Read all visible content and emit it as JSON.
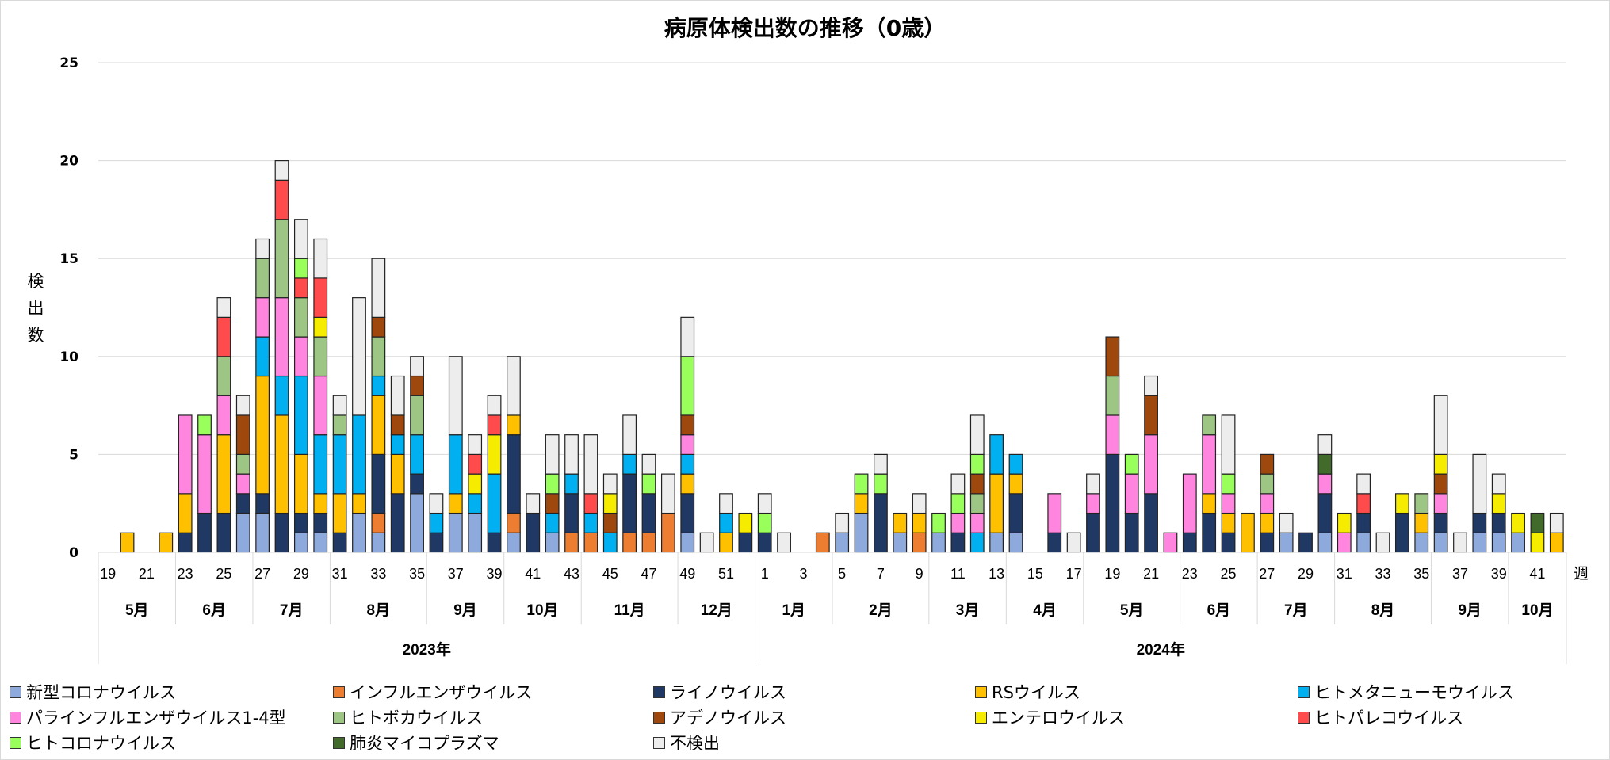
{
  "chart_data": {
    "type": "bar",
    "stacked": true,
    "title": "病原体検出数の推移（0歳）",
    "ylabel": "検出数",
    "xlabel": "週",
    "ylim": [
      0,
      25
    ],
    "yticks": [
      0,
      5,
      10,
      15,
      20,
      25
    ],
    "grid": true,
    "legend_position": "bottom",
    "years": [
      {
        "label": "2023年",
        "weeks": 34
      },
      {
        "label": "2024年",
        "weeks": 42
      }
    ],
    "months": [
      {
        "label": "5月",
        "weeks": 4
      },
      {
        "label": "6月",
        "weeks": 4
      },
      {
        "label": "7月",
        "weeks": 4
      },
      {
        "label": "8月",
        "weeks": 5
      },
      {
        "label": "9月",
        "weeks": 4
      },
      {
        "label": "10月",
        "weeks": 4
      },
      {
        "label": "11月",
        "weeks": 5
      },
      {
        "label": "12月",
        "weeks": 4
      },
      {
        "label": "1月",
        "weeks": 4
      },
      {
        "label": "2月",
        "weeks": 5
      },
      {
        "label": "3月",
        "weeks": 4
      },
      {
        "label": "4月",
        "weeks": 4
      },
      {
        "label": "5月",
        "weeks": 5
      },
      {
        "label": "6月",
        "weeks": 4
      },
      {
        "label": "7月",
        "weeks": 4
      },
      {
        "label": "8月",
        "weeks": 5
      },
      {
        "label": "9月",
        "weeks": 4
      },
      {
        "label": "10月",
        "weeks": 3
      }
    ],
    "categories": [
      "19",
      "20",
      "21",
      "22",
      "23",
      "24",
      "25",
      "26",
      "27",
      "28",
      "29",
      "30",
      "31",
      "32",
      "33",
      "34",
      "35",
      "36",
      "37",
      "38",
      "39",
      "40",
      "41",
      "42",
      "43",
      "44",
      "45",
      "46",
      "47",
      "48",
      "49",
      "50",
      "51",
      "52",
      "1",
      "2",
      "3",
      "4",
      "5",
      "6",
      "7",
      "8",
      "9",
      "10",
      "11",
      "12",
      "13",
      "14",
      "15",
      "16",
      "17",
      "18",
      "19",
      "20",
      "21",
      "22",
      "23",
      "24",
      "25",
      "26",
      "27",
      "28",
      "29",
      "30",
      "31",
      "32",
      "33",
      "34",
      "35",
      "36",
      "37",
      "38",
      "39",
      "40",
      "41",
      "42"
    ],
    "tick_every": 2,
    "series": [
      {
        "name": "新型コロナウイルス",
        "color": "#8EA9DB",
        "values": [
          0,
          0,
          0,
          0,
          0,
          0,
          0,
          2,
          2,
          0,
          1,
          1,
          0,
          2,
          1,
          0,
          3,
          0,
          2,
          2,
          0,
          1,
          0,
          1,
          0,
          0,
          0,
          0,
          0,
          0,
          1,
          0,
          0,
          0,
          0,
          0,
          0,
          0,
          1,
          2,
          0,
          1,
          0,
          1,
          0,
          0,
          1,
          1,
          0,
          0,
          0,
          0,
          0,
          0,
          0,
          0,
          0,
          0,
          0,
          0,
          0,
          1,
          0,
          1,
          0,
          1,
          0,
          0,
          1,
          1,
          0,
          1,
          1,
          1,
          0,
          0
        ]
      },
      {
        "name": "インフルエンザウイルス",
        "color": "#ED7D31",
        "values": [
          0,
          0,
          0,
          0,
          0,
          0,
          0,
          0,
          0,
          0,
          0,
          0,
          0,
          0,
          1,
          0,
          0,
          0,
          0,
          0,
          0,
          1,
          0,
          0,
          1,
          1,
          0,
          1,
          1,
          2,
          0,
          0,
          0,
          0,
          0,
          0,
          0,
          1,
          0,
          0,
          0,
          0,
          1,
          0,
          0,
          0,
          0,
          0,
          0,
          0,
          0,
          0,
          0,
          0,
          0,
          0,
          0,
          0,
          0,
          0,
          0,
          0,
          0,
          0,
          0,
          0,
          0,
          0,
          0,
          0,
          0,
          0,
          0,
          0,
          0,
          0
        ]
      },
      {
        "name": "ライノウイルス",
        "color": "#203864",
        "values": [
          0,
          0,
          0,
          0,
          1,
          2,
          2,
          1,
          1,
          2,
          1,
          1,
          1,
          0,
          3,
          3,
          1,
          1,
          0,
          0,
          1,
          4,
          2,
          0,
          2,
          0,
          0,
          3,
          2,
          0,
          2,
          0,
          0,
          1,
          1,
          0,
          0,
          0,
          0,
          0,
          3,
          0,
          0,
          0,
          1,
          0,
          0,
          2,
          0,
          1,
          0,
          2,
          5,
          2,
          3,
          0,
          1,
          2,
          1,
          0,
          1,
          0,
          1,
          2,
          0,
          1,
          0,
          2,
          0,
          1,
          0,
          1,
          1,
          0,
          0,
          0
        ]
      },
      {
        "name": "RSウイルス",
        "color": "#FFC000",
        "values": [
          0,
          1,
          0,
          1,
          2,
          0,
          4,
          0,
          6,
          5,
          3,
          1,
          2,
          1,
          3,
          2,
          0,
          0,
          1,
          0,
          0,
          1,
          0,
          0,
          0,
          0,
          0,
          0,
          0,
          0,
          1,
          0,
          1,
          0,
          0,
          0,
          0,
          0,
          0,
          1,
          0,
          1,
          1,
          0,
          0,
          0,
          3,
          1,
          0,
          0,
          0,
          0,
          0,
          0,
          0,
          0,
          0,
          1,
          1,
          2,
          1,
          0,
          0,
          0,
          0,
          0,
          0,
          0,
          1,
          0,
          0,
          0,
          0,
          0,
          0,
          1
        ]
      },
      {
        "name": "ヒトメタニューモウイルス",
        "color": "#00B0F0",
        "values": [
          0,
          0,
          0,
          0,
          0,
          0,
          0,
          0,
          2,
          2,
          4,
          3,
          3,
          4,
          1,
          1,
          2,
          1,
          3,
          1,
          3,
          0,
          0,
          1,
          1,
          1,
          1,
          1,
          0,
          0,
          1,
          0,
          1,
          0,
          0,
          0,
          0,
          0,
          0,
          0,
          0,
          0,
          0,
          0,
          0,
          1,
          2,
          1,
          0,
          0,
          0,
          0,
          0,
          0,
          0,
          0,
          0,
          0,
          0,
          0,
          0,
          0,
          0,
          0,
          0,
          0,
          0,
          0,
          0,
          0,
          0,
          0,
          0,
          0,
          0,
          0
        ]
      },
      {
        "name": "パラインフルエンザウイルス1-4型",
        "color": "#FF85DE",
        "values": [
          0,
          0,
          0,
          0,
          4,
          4,
          2,
          1,
          2,
          4,
          2,
          3,
          0,
          0,
          0,
          0,
          0,
          0,
          0,
          0,
          0,
          0,
          0,
          0,
          0,
          0,
          0,
          0,
          0,
          0,
          1,
          0,
          0,
          0,
          0,
          0,
          0,
          0,
          0,
          0,
          0,
          0,
          0,
          0,
          1,
          1,
          0,
          0,
          0,
          2,
          0,
          1,
          2,
          2,
          3,
          1,
          3,
          3,
          1,
          0,
          1,
          0,
          0,
          1,
          1,
          0,
          0,
          0,
          0,
          1,
          0,
          0,
          0,
          0,
          0,
          0
        ]
      },
      {
        "name": "ヒトボカウイルス",
        "color": "#9DC583",
        "values": [
          0,
          0,
          0,
          0,
          0,
          0,
          2,
          1,
          2,
          4,
          2,
          2,
          1,
          0,
          2,
          0,
          2,
          0,
          0,
          0,
          0,
          0,
          0,
          0,
          0,
          0,
          0,
          0,
          0,
          0,
          0,
          0,
          0,
          0,
          0,
          0,
          0,
          0,
          0,
          0,
          0,
          0,
          0,
          0,
          0,
          1,
          0,
          0,
          0,
          0,
          0,
          0,
          2,
          0,
          0,
          0,
          0,
          1,
          0,
          0,
          1,
          0,
          0,
          0,
          0,
          0,
          0,
          0,
          1,
          0,
          0,
          0,
          0,
          0,
          0,
          0
        ]
      },
      {
        "name": "アデノウイルス",
        "color": "#9E480E",
        "values": [
          0,
          0,
          0,
          0,
          0,
          0,
          0,
          2,
          0,
          0,
          0,
          0,
          0,
          0,
          1,
          1,
          1,
          0,
          0,
          0,
          0,
          0,
          0,
          1,
          0,
          0,
          1,
          0,
          0,
          0,
          1,
          0,
          0,
          0,
          0,
          0,
          0,
          0,
          0,
          0,
          0,
          0,
          0,
          0,
          0,
          1,
          0,
          0,
          0,
          0,
          0,
          0,
          2,
          0,
          2,
          0,
          0,
          0,
          0,
          0,
          1,
          0,
          0,
          0,
          0,
          0,
          0,
          0,
          0,
          1,
          0,
          0,
          0,
          0,
          0,
          0
        ]
      },
      {
        "name": "エンテロウイルス",
        "color": "#F5EC00",
        "values": [
          0,
          0,
          0,
          0,
          0,
          0,
          0,
          0,
          0,
          0,
          0,
          1,
          0,
          0,
          0,
          0,
          0,
          0,
          0,
          1,
          2,
          0,
          0,
          0,
          0,
          0,
          1,
          0,
          0,
          0,
          0,
          0,
          0,
          1,
          0,
          0,
          0,
          0,
          0,
          0,
          0,
          0,
          0,
          0,
          0,
          0,
          0,
          0,
          0,
          0,
          0,
          0,
          0,
          0,
          0,
          0,
          0,
          0,
          0,
          0,
          0,
          0,
          0,
          0,
          1,
          0,
          0,
          1,
          0,
          1,
          0,
          0,
          1,
          1,
          1,
          0
        ]
      },
      {
        "name": "ヒトパレコウイルス",
        "color": "#FF4B4B",
        "values": [
          0,
          0,
          0,
          0,
          0,
          0,
          2,
          0,
          0,
          2,
          1,
          2,
          0,
          0,
          0,
          0,
          0,
          0,
          0,
          1,
          1,
          0,
          0,
          0,
          0,
          1,
          0,
          0,
          0,
          0,
          0,
          0,
          0,
          0,
          0,
          0,
          0,
          0,
          0,
          0,
          0,
          0,
          0,
          0,
          0,
          0,
          0,
          0,
          0,
          0,
          0,
          0,
          0,
          0,
          0,
          0,
          0,
          0,
          0,
          0,
          0,
          0,
          0,
          0,
          0,
          1,
          0,
          0,
          0,
          0,
          0,
          0,
          0,
          0,
          0,
          0
        ]
      },
      {
        "name": "ヒトコロナウイルス",
        "color": "#99FF5B",
        "values": [
          0,
          0,
          0,
          0,
          0,
          1,
          0,
          0,
          0,
          0,
          1,
          0,
          0,
          0,
          0,
          0,
          0,
          0,
          0,
          0,
          0,
          0,
          0,
          1,
          0,
          0,
          0,
          0,
          1,
          0,
          3,
          0,
          0,
          0,
          1,
          0,
          0,
          0,
          0,
          1,
          1,
          0,
          0,
          1,
          1,
          1,
          0,
          0,
          0,
          0,
          0,
          0,
          0,
          1,
          0,
          0,
          0,
          0,
          1,
          0,
          0,
          0,
          0,
          0,
          0,
          0,
          0,
          0,
          0,
          0,
          0,
          0,
          0,
          0,
          0,
          0
        ]
      },
      {
        "name": "肺炎マイコプラズマ",
        "color": "#426A2B",
        "values": [
          0,
          0,
          0,
          0,
          0,
          0,
          0,
          0,
          0,
          0,
          0,
          0,
          0,
          0,
          0,
          0,
          0,
          0,
          0,
          0,
          0,
          0,
          0,
          0,
          0,
          0,
          0,
          0,
          0,
          0,
          0,
          0,
          0,
          0,
          0,
          0,
          0,
          0,
          0,
          0,
          0,
          0,
          0,
          0,
          0,
          0,
          0,
          0,
          0,
          0,
          0,
          0,
          0,
          0,
          0,
          0,
          0,
          0,
          0,
          0,
          0,
          0,
          0,
          1,
          0,
          0,
          0,
          0,
          0,
          0,
          0,
          0,
          0,
          0,
          1,
          0
        ]
      },
      {
        "name": "不検出",
        "color": "#EDEDED",
        "values": [
          0,
          0,
          0,
          0,
          0,
          0,
          1,
          1,
          1,
          1,
          2,
          2,
          1,
          6,
          3,
          2,
          1,
          1,
          4,
          1,
          1,
          3,
          1,
          2,
          2,
          3,
          1,
          2,
          1,
          2,
          2,
          1,
          1,
          0,
          1,
          1,
          0,
          0,
          1,
          0,
          1,
          0,
          1,
          0,
          1,
          2,
          0,
          0,
          0,
          0,
          1,
          1,
          0,
          0,
          1,
          0,
          0,
          0,
          3,
          0,
          0,
          1,
          0,
          1,
          0,
          1,
          1,
          0,
          0,
          3,
          1,
          3,
          1,
          0,
          0,
          1
        ]
      }
    ]
  }
}
